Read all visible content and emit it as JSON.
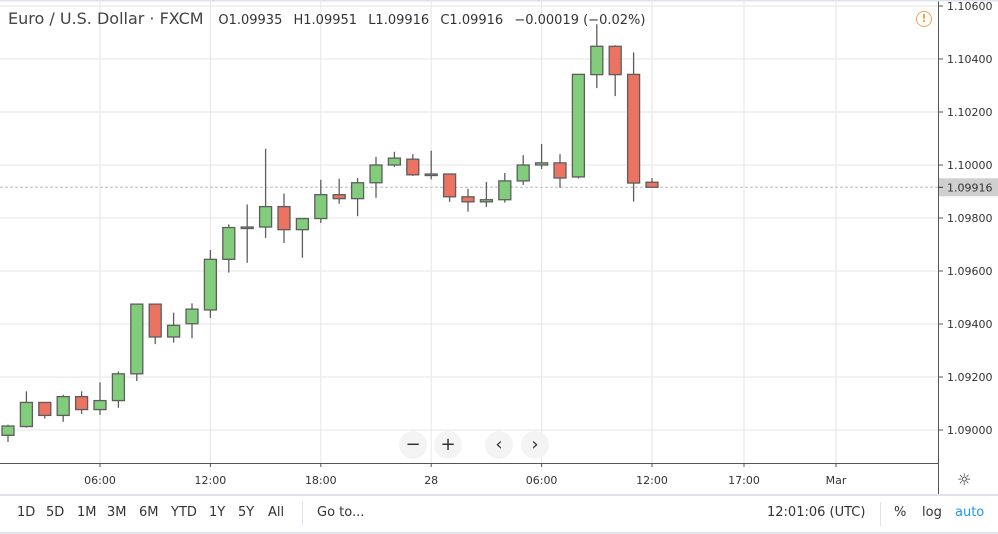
{
  "legend": {
    "title": "Euro / U.S. Dollar · FXCM",
    "open": "O1.09935",
    "high": "H1.09951",
    "low": "L1.09916",
    "close": "C1.09916",
    "change": "−0.00019 (−0.02%)"
  },
  "warning_icon": "!",
  "colors": {
    "up": "#82cd7b",
    "down": "#ec7262",
    "outline": "#5d5d5d",
    "accent": "#2196f3",
    "warning": "#f5a14d"
  },
  "chart_data": {
    "type": "candlestick",
    "interval": "1h",
    "ylim": [
      1.0895,
      1.1062
    ],
    "ohlc": [
      [
        1.0898,
        1.0902,
        1.08955,
        1.09015
      ],
      [
        1.09013,
        1.09146,
        1.09009,
        1.09104
      ],
      [
        1.09104,
        1.09104,
        1.09043,
        1.09055
      ],
      [
        1.09055,
        1.09133,
        1.09031,
        1.09126
      ],
      [
        1.09126,
        1.09146,
        1.09061,
        1.09077
      ],
      [
        1.09077,
        1.0918,
        1.09057,
        1.09111
      ],
      [
        1.09111,
        1.09221,
        1.09084,
        1.09212
      ],
      [
        1.09212,
        1.09476,
        1.09185,
        1.09475
      ],
      [
        1.09475,
        1.09475,
        1.09324,
        1.09351
      ],
      [
        1.09351,
        1.09443,
        1.0933,
        1.09395
      ],
      [
        1.09401,
        1.09478,
        1.09346,
        1.09456
      ],
      [
        1.09453,
        1.09679,
        1.09423,
        1.09644
      ],
      [
        1.09644,
        1.09776,
        1.09594,
        1.09764
      ],
      [
        1.09764,
        1.09851,
        1.09631,
        1.09766
      ],
      [
        1.09766,
        1.10061,
        1.09725,
        1.09843
      ],
      [
        1.09843,
        1.09892,
        1.09706,
        1.09756
      ],
      [
        1.09756,
        1.09798,
        1.0965,
        1.09798
      ],
      [
        1.09798,
        1.09944,
        1.09781,
        1.09888
      ],
      [
        1.09888,
        1.09948,
        1.09854,
        1.09873
      ],
      [
        1.09873,
        1.09951,
        1.09807,
        1.09933
      ],
      [
        1.09933,
        1.10031,
        1.09876,
        1.1
      ],
      [
        1.1,
        1.1005,
        1.09993,
        1.10026
      ],
      [
        1.10022,
        1.10041,
        1.09959,
        1.09963
      ],
      [
        1.09963,
        1.10054,
        1.09946,
        1.09966
      ],
      [
        1.09966,
        1.09966,
        1.09861,
        1.0988
      ],
      [
        1.0988,
        1.0991,
        1.09824,
        1.09861
      ],
      [
        1.09861,
        1.09936,
        1.09842,
        1.09869
      ],
      [
        1.09869,
        1.0997,
        1.09858,
        1.0994
      ],
      [
        1.0994,
        1.10037,
        1.09925,
        1.1
      ],
      [
        1.1,
        1.10079,
        1.09985,
        1.10008
      ],
      [
        1.10008,
        1.10041,
        1.09914,
        1.09951
      ],
      [
        1.09955,
        1.10342,
        1.09949,
        1.10342
      ],
      [
        1.10341,
        1.10531,
        1.1029,
        1.10448
      ],
      [
        1.10448,
        1.10452,
        1.1026,
        1.10341
      ],
      [
        1.10342,
        1.10425,
        1.09862,
        1.09932
      ],
      [
        1.09935,
        1.09951,
        1.09916,
        1.09916
      ]
    ],
    "y_ticks": [
      "1.10600",
      "1.10400",
      "1.10200",
      "1.10000",
      "1.09800",
      "1.09600",
      "1.09400",
      "1.09200",
      "1.09000"
    ],
    "y_tick_values": [
      1.106,
      1.104,
      1.102,
      1.1,
      1.098,
      1.096,
      1.094,
      1.092,
      1.09
    ],
    "x_ticks": [
      "06:00",
      "12:00",
      "18:00",
      "28",
      "06:00",
      "12:00",
      "17:00",
      "Mar"
    ],
    "x_tick_hours": [
      5,
      11,
      17,
      23,
      29,
      35,
      40,
      45
    ],
    "last_price": "1.09916",
    "last_price_value": 1.09916,
    "grid": true
  },
  "nav": {
    "zoom_out": "−",
    "zoom_in": "+",
    "scroll_left": "‹",
    "scroll_right": "›"
  },
  "settings_icon": "☼",
  "bottom": {
    "ranges": [
      "1D",
      "5D",
      "1M",
      "3M",
      "6M",
      "YTD",
      "1Y",
      "5Y",
      "All"
    ],
    "goto": "Go to...",
    "clock": "12:01:06 (UTC)",
    "percent": "%",
    "log": "log",
    "auto": "auto"
  }
}
